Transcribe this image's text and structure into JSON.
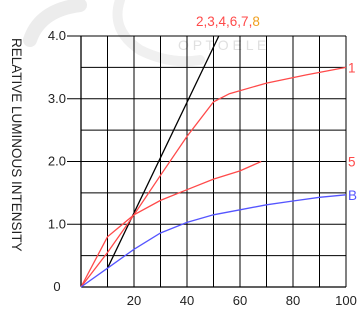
{
  "watermark": {
    "text": "O P T O E L E",
    "color": "#e8e8e8"
  },
  "chart_data": {
    "type": "line",
    "ylabel": "RELATIVE LUMINOUS INTENSITY",
    "xlabel": "",
    "title": "",
    "xlim": [
      0,
      100
    ],
    "ylim": [
      0,
      4.0
    ],
    "x_ticks": [
      20,
      40,
      60,
      80,
      100
    ],
    "y_ticks": [
      1.0,
      2.0,
      3.0,
      4.0
    ],
    "x_tick_labels": [
      "20",
      "40",
      "60",
      "80",
      "100"
    ],
    "y_tick_labels": [
      "1.0",
      "2.0",
      "3.0",
      "4.0"
    ],
    "origin_label": "0",
    "grid": true,
    "series": [
      {
        "name": "2,3,4,6,7,8",
        "color": "#000000",
        "points": [
          [
            10,
            0.3
          ],
          [
            52,
            4.0
          ]
        ]
      },
      {
        "name": "1",
        "color": "#ff4a4a",
        "points": [
          [
            0,
            0
          ],
          [
            10,
            0.55
          ],
          [
            20,
            1.15
          ],
          [
            30,
            1.78
          ],
          [
            40,
            2.4
          ],
          [
            50,
            2.95
          ],
          [
            56,
            3.08
          ],
          [
            70,
            3.25
          ],
          [
            85,
            3.38
          ],
          [
            100,
            3.5
          ]
        ]
      },
      {
        "name": "5",
        "color": "#ff4a4a",
        "points": [
          [
            0,
            0
          ],
          [
            10,
            0.8
          ],
          [
            20,
            1.15
          ],
          [
            30,
            1.38
          ],
          [
            40,
            1.55
          ],
          [
            50,
            1.72
          ],
          [
            60,
            1.85
          ],
          [
            68,
            2.0
          ]
        ]
      },
      {
        "name": "B",
        "color": "#5555ff",
        "points": [
          [
            0,
            0
          ],
          [
            10,
            0.3
          ],
          [
            20,
            0.6
          ],
          [
            30,
            0.86
          ],
          [
            40,
            1.03
          ],
          [
            50,
            1.15
          ],
          [
            60,
            1.23
          ],
          [
            70,
            1.31
          ],
          [
            80,
            1.37
          ],
          [
            90,
            1.43
          ],
          [
            100,
            1.47
          ]
        ]
      }
    ],
    "top_legend": [
      {
        "text": "2,3,4,6,",
        "color": "#ff4a4a"
      },
      {
        "text": "7",
        "color": "#ff4a4a"
      },
      {
        "text": ",",
        "color": "#ff4a4a"
      },
      {
        "text": "8",
        "color": "#f0a020"
      }
    ],
    "right_labels": [
      {
        "text": "1",
        "color": "#ff4a4a",
        "at": 3.5
      },
      {
        "text": "5",
        "color": "#ff4a4a",
        "at": 2.0
      },
      {
        "text": "B",
        "color": "#5555ff",
        "at": 1.47
      }
    ]
  }
}
